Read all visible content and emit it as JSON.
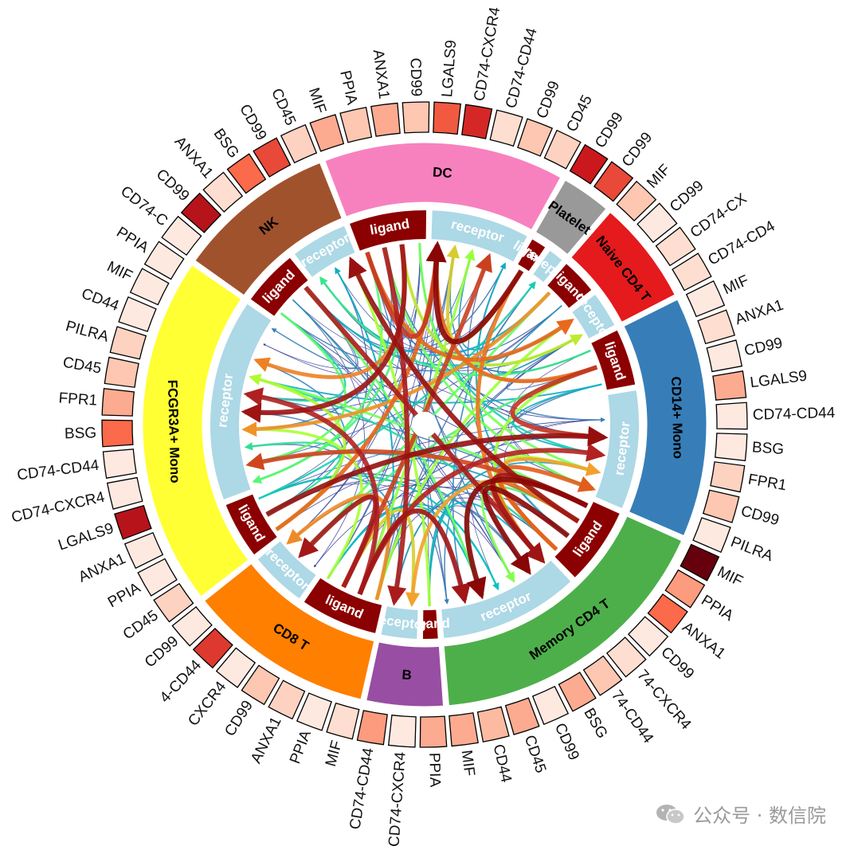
{
  "watermark": {
    "text": "公众号 · 数信院",
    "icon": "wechat-icon"
  },
  "chart_data": {
    "type": "chord",
    "sectors": [
      {
        "name": "NK",
        "color": "#A0522D",
        "groups": [
          {
            "role": "ligand",
            "genes": [
              "CD74-C",
              "CD99",
              "ANXA1"
            ]
          },
          {
            "role": "receptor",
            "genes": [
              "BSG",
              "CD99",
              "CD45"
            ]
          }
        ]
      },
      {
        "name": "DC",
        "color": "#F781BF",
        "groups": [
          {
            "role": "ligand",
            "genes": [
              "MIF",
              "PPIA",
              "ANXA1",
              "CD99"
            ]
          },
          {
            "role": "receptor",
            "genes": [
              "LGALS9",
              "CD74-CXCR4",
              "CD74-CD44",
              "CD99",
              "CD45"
            ]
          }
        ]
      },
      {
        "name": "Platelet",
        "color": "#999999",
        "groups": [
          {
            "role": "ligand",
            "genes": [
              "CD99"
            ]
          },
          {
            "role": "receptor",
            "genes": [
              "CD99"
            ]
          }
        ]
      },
      {
        "name": "Naive CD4 T",
        "color": "#E41A1C",
        "groups": [
          {
            "role": "ligand",
            "genes": [
              "MIF",
              "CD99"
            ]
          },
          {
            "role": "receptor",
            "genes": [
              "CD74-CX",
              "CD74-CD4"
            ]
          }
        ]
      },
      {
        "name": "CD14+ Mono",
        "color": "#377EB8",
        "groups": [
          {
            "role": "ligand",
            "genes": [
              "MIF",
              "ANXA1",
              "CD99"
            ]
          },
          {
            "role": "receptor",
            "genes": [
              "LGALS9",
              "CD74-CD44",
              "BSG",
              "FPR1",
              "CD99",
              "PILRA"
            ]
          }
        ]
      },
      {
        "name": "Memory CD4 T",
        "color": "#4DAF4A",
        "groups": [
          {
            "role": "ligand",
            "genes": [
              "MIF",
              "PPIA",
              "ANXA1",
              "CD99"
            ]
          },
          {
            "role": "receptor",
            "genes": [
              "74-CXCR4",
              "74-CD44",
              "BSG",
              "CD99",
              "CD45",
              "CD44",
              "MIF"
            ]
          }
        ]
      },
      {
        "name": "B",
        "color": "#984EA3",
        "groups": [
          {
            "role": "ligand",
            "genes": [
              "PPIA"
            ]
          },
          {
            "role": "receptor",
            "genes": [
              "CD74-CXCR4",
              "CD74-CD44"
            ]
          }
        ]
      },
      {
        "name": "CD8 T",
        "color": "#FF7F00",
        "groups": [
          {
            "role": "ligand",
            "genes": [
              "MIF",
              "PPIA",
              "ANXA1",
              "CD99"
            ]
          },
          {
            "role": "receptor",
            "genes": [
              "CXCR4",
              "4-CD44",
              "CD99"
            ]
          }
        ]
      },
      {
        "name": "FCGR3A+ Mono",
        "color": "#FFFF33",
        "groups": [
          {
            "role": "ligand",
            "genes": [
              "CD45",
              "PPIA",
              "ANXA1"
            ]
          },
          {
            "role": "receptor",
            "genes": [
              "LGALS9",
              "CD74-CXCR4",
              "CD74-CD44",
              "BSG",
              "FPR1",
              "CD45",
              "PILRA",
              "CD44",
              "MIF",
              "PPIA"
            ]
          }
        ]
      }
    ],
    "gene_intensity": [
      [
        0.05,
        0.8,
        0.1,
        0.5,
        0.6,
        0.15
      ],
      [
        0.3,
        0.2,
        0.3,
        0.2,
        0.55,
        0.7,
        0.1,
        0.2,
        0.15
      ],
      [
        0.75
      ],
      [
        0.6
      ],
      [
        0.2
      ],
      [
        0.05
      ],
      [
        0.1
      ],
      [
        0.1
      ],
      [
        0.05,
        0.1,
        0.05,
        0.3,
        0.05,
        0.05,
        0.15,
        0.2,
        0.05
      ],
      [
        1.0,
        0.35,
        0.5,
        0.05,
        0.1,
        0.2,
        0.3,
        0.05,
        0.3,
        0.25,
        0.3,
        0.3,
        0.05,
        0.35,
        0.1
      ],
      [
        0.05,
        0.15,
        0.2,
        0.05,
        0.65
      ],
      [
        0.05,
        0.15,
        0.05,
        0.05,
        0.8,
        0.05,
        0.05,
        0.5,
        0.3
      ],
      [
        0.2,
        0.15,
        0.05,
        0.05,
        0.05,
        0.75,
        0.05,
        0.05,
        0.65,
        0.1,
        0.15,
        0.05,
        0.05,
        0.6
      ]
    ],
    "value_scale": {
      "type": "sequential",
      "colors": [
        "#FFF5F0",
        "#FCBBA1",
        "#FB6A4A",
        "#CB181D",
        "#67000D"
      ]
    },
    "link_scale": {
      "colors": [
        "#313695",
        "#4575B4",
        "#00BFC4",
        "#66FF66",
        "#ADFF2F",
        "#F4A82F",
        "#E8651A",
        "#B22222",
        "#7F0000"
      ]
    }
  }
}
